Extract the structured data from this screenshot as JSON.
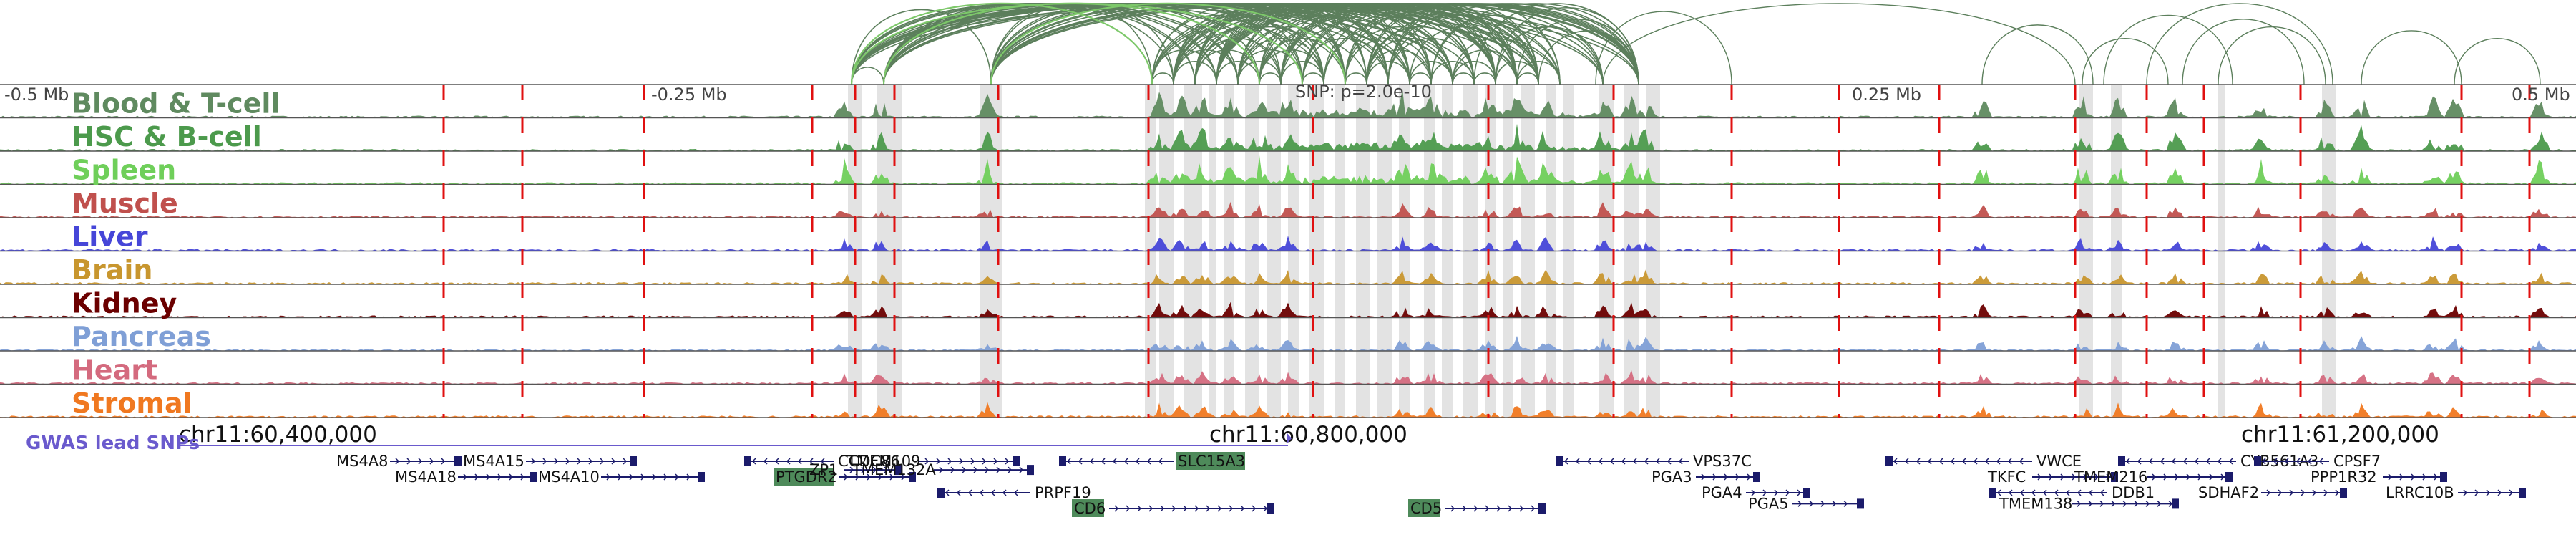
{
  "scale": {
    "left": "-0.5 Mb",
    "mid_left": "-0.25 Mb",
    "snp_note": "SNP: p=2.0e-10",
    "mid_right": "0.25 Mb",
    "right": "0.5 Mb"
  },
  "tracks": [
    {
      "label": "Blood & T-cell",
      "color": "#5f8a5f"
    },
    {
      "label": "HSC & B-cell",
      "color": "#4c9a4c"
    },
    {
      "label": "Spleen",
      "color": "#6fcf5a"
    },
    {
      "label": "Muscle",
      "color": "#c0504d"
    },
    {
      "label": "Liver",
      "color": "#4646d8"
    },
    {
      "label": "Brain",
      "color": "#c8962e"
    },
    {
      "label": "Kidney",
      "color": "#6b0000"
    },
    {
      "label": "Pancreas",
      "color": "#7f9fd6"
    },
    {
      "label": "Heart",
      "color": "#d46a7e"
    },
    {
      "label": "Stromal",
      "color": "#f07820"
    }
  ],
  "coordinates": [
    "chr11:60,400,000",
    "chr11:60,800,000",
    "chr11:61,200,000"
  ],
  "gwas": {
    "label": "GWAS lead SNPs",
    "color": "#6a5acd"
  },
  "genes": [
    {
      "name": "MS4A8",
      "highlight": false
    },
    {
      "name": "MS4A18",
      "highlight": false
    },
    {
      "name": "MS4A15",
      "highlight": false
    },
    {
      "name": "MS4A10",
      "highlight": false
    },
    {
      "name": "CCDC86",
      "highlight": false
    },
    {
      "name": "PTGDR2",
      "highlight": true
    },
    {
      "name": "ZP1",
      "highlight": false
    },
    {
      "name": "PRPF19",
      "highlight": false
    },
    {
      "name": "TMEM109",
      "highlight": false
    },
    {
      "name": "TMEM132A",
      "highlight": false
    },
    {
      "name": "SLC15A3",
      "highlight": true
    },
    {
      "name": "CD6",
      "highlight": true
    },
    {
      "name": "CD5",
      "highlight": true
    },
    {
      "name": "VPS37C",
      "highlight": false
    },
    {
      "name": "PGA3",
      "highlight": false
    },
    {
      "name": "PGA4",
      "highlight": false
    },
    {
      "name": "PGA5",
      "highlight": false
    },
    {
      "name": "VWCE",
      "highlight": false
    },
    {
      "name": "TKFC",
      "highlight": false
    },
    {
      "name": "DDB1",
      "highlight": false
    },
    {
      "name": "TMEM138",
      "highlight": false
    },
    {
      "name": "CYB561A3",
      "highlight": false
    },
    {
      "name": "TMEM216",
      "highlight": false
    },
    {
      "name": "CPSF7",
      "highlight": false
    },
    {
      "name": "SDHAF2",
      "highlight": false
    },
    {
      "name": "PPP1R32",
      "highlight": false
    },
    {
      "name": "LRRC10B",
      "highlight": false
    }
  ],
  "colors": {
    "link_dark": "#5c7f5c",
    "link_light": "#7dc86a",
    "marker_red": "#e01010",
    "shade": "#d9d9d9",
    "highlight_fill": "#4e8a5a",
    "gene_body": "#1b1b6b"
  }
}
